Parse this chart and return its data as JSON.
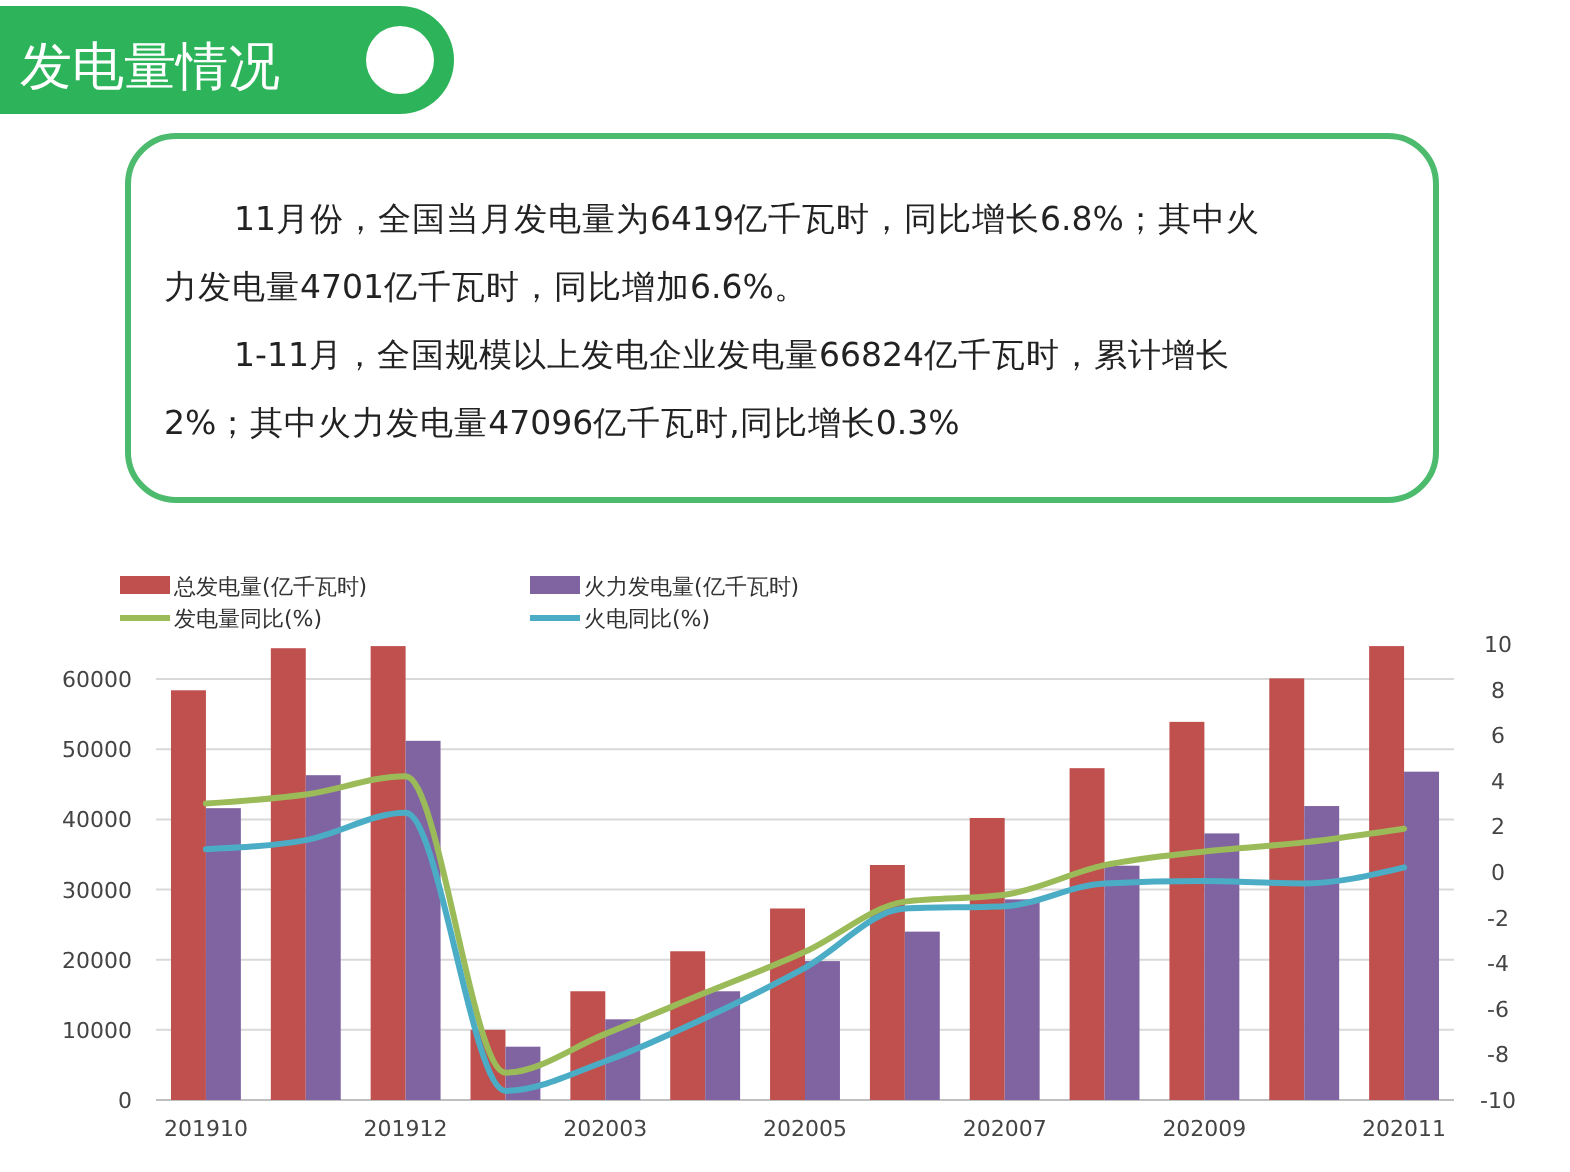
{
  "chart_data": {
    "type": "bar",
    "title": "发电量情况",
    "annotations": [
      "11月份，全国当月发电量为6419亿千瓦时，同比增长6.8%；其中火力发电量4701亿千瓦时，同比增加6.6%。",
      "1-11月，全国规模以上发电企业发电量66824亿千瓦时，累计增长2%；其中火力发电量47096亿千瓦时,同比增长0.3%"
    ],
    "categories": [
      "201910",
      null,
      "201912",
      null,
      "202003",
      null,
      "202005",
      null,
      "202007",
      null,
      "202009",
      null,
      "202011"
    ],
    "series": [
      {
        "name": "总发电量(亿千瓦时)",
        "color": "#c0504d",
        "values": [
          58400,
          64400,
          64700,
          10000,
          15500,
          21200,
          27300,
          33500,
          40200,
          47300,
          53900,
          60100,
          64700
        ]
      },
      {
        "name": "火力发电量(亿千瓦时)",
        "color": "#8064a2",
        "values": [
          41600,
          46300,
          51200,
          7600,
          11500,
          15500,
          19800,
          24000,
          28600,
          33400,
          38000,
          41900,
          46800
        ]
      },
      {
        "name": "发电量同比(%)",
        "type": "line",
        "axis": "y2",
        "color": "#9bbb59",
        "values": [
          3.0,
          3.4,
          4.2,
          -8.8,
          -7.1,
          -5.3,
          -3.5,
          -1.3,
          -1.0,
          0.3,
          0.9,
          1.3,
          1.9
        ]
      },
      {
        "name": "火电同比(%)",
        "type": "line",
        "axis": "y2",
        "color": "#4bacc6",
        "values": [
          1.0,
          1.4,
          2.6,
          -9.6,
          -8.3,
          -6.4,
          -4.2,
          -1.6,
          -1.5,
          -0.5,
          -0.4,
          -0.5,
          0.2
        ]
      }
    ],
    "ylim": [
      0,
      65000
    ],
    "yticks": [
      0,
      10000,
      20000,
      30000,
      40000,
      50000,
      60000
    ],
    "y2lim": [
      -10,
      10
    ],
    "y2ticks": [
      -10,
      -8,
      -6,
      -4,
      -2,
      0,
      2,
      4,
      6,
      8,
      10
    ],
    "grid": "y",
    "legend": "top",
    "marker": "none",
    "line_style": "solid"
  }
}
